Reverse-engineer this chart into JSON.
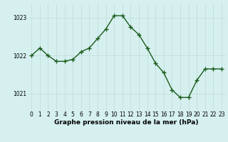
{
  "x": [
    0,
    1,
    2,
    3,
    4,
    5,
    6,
    7,
    8,
    9,
    10,
    11,
    12,
    13,
    14,
    15,
    16,
    17,
    18,
    19,
    20,
    21,
    22,
    23
  ],
  "y": [
    1022.0,
    1022.2,
    1022.0,
    1021.85,
    1021.85,
    1021.9,
    1022.1,
    1022.2,
    1022.45,
    1022.7,
    1023.05,
    1023.05,
    1022.75,
    1022.55,
    1022.2,
    1021.8,
    1021.55,
    1021.1,
    1020.9,
    1020.9,
    1021.35,
    1021.65,
    1021.65,
    1021.65
  ],
  "line_color": "#1a5c1a",
  "marker": "+",
  "marker_size": 4,
  "line_width": 1.0,
  "bg_color": "#d6f0f0",
  "grid_color_major": "#c0d8d8",
  "grid_color_minor": "#e0f4f4",
  "yticks": [
    1021,
    1022,
    1023
  ],
  "xticks": [
    0,
    1,
    2,
    3,
    4,
    5,
    6,
    7,
    8,
    9,
    10,
    11,
    12,
    13,
    14,
    15,
    16,
    17,
    18,
    19,
    20,
    21,
    22,
    23
  ],
  "xlabel_text": "Graphe pression niveau de la mer (hPa)",
  "tick_label_size": 5.5,
  "xlabel_fontsize": 6.5,
  "ylim": [
    1020.55,
    1023.35
  ],
  "xlim": [
    -0.5,
    23.5
  ],
  "fig_bg": "#d6f0f0"
}
